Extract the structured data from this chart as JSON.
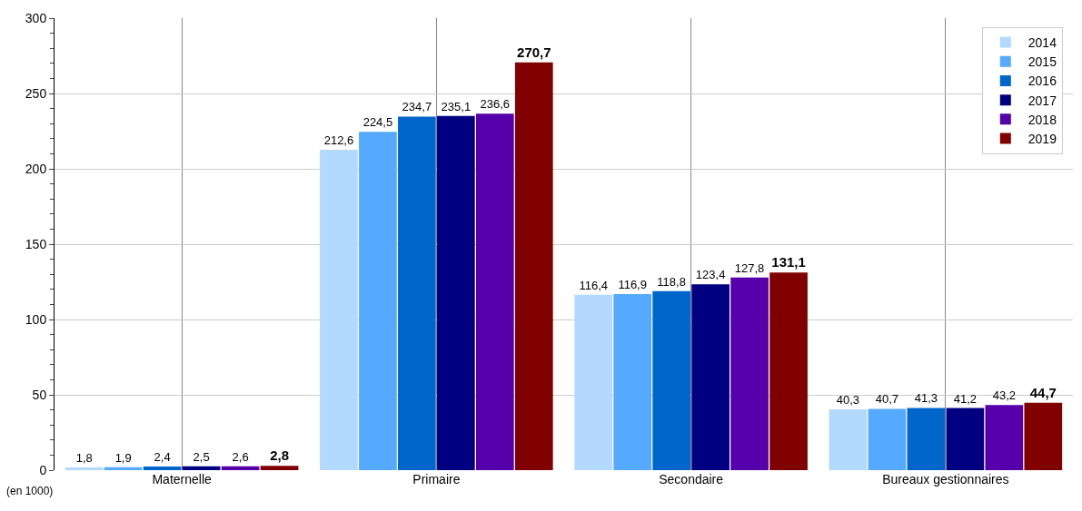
{
  "chart_data": {
    "type": "bar",
    "categories": [
      "Maternelle",
      "Primaire",
      "Secondaire",
      "Bureaux gestionnaires"
    ],
    "series": [
      {
        "name": "2014",
        "color": "#b3d9ff",
        "values": [
          1.8,
          212.6,
          116.4,
          40.3
        ],
        "value_labels": [
          "1,8",
          "212,6",
          "116,4",
          "40,3"
        ]
      },
      {
        "name": "2015",
        "color": "#55aaff",
        "values": [
          1.9,
          224.5,
          116.9,
          40.7
        ],
        "value_labels": [
          "1,9",
          "224,5",
          "116,9",
          "40,7"
        ]
      },
      {
        "name": "2016",
        "color": "#0066cc",
        "values": [
          2.4,
          234.7,
          118.8,
          41.3
        ],
        "value_labels": [
          "2,4",
          "234,7",
          "118,8",
          "41,3"
        ]
      },
      {
        "name": "2017",
        "color": "#000080",
        "values": [
          2.5,
          235.1,
          123.4,
          41.2
        ],
        "value_labels": [
          "2,5",
          "235,1",
          "123,4",
          "41,2"
        ]
      },
      {
        "name": "2018",
        "color": "#5500aa",
        "values": [
          2.6,
          236.6,
          127.8,
          43.2
        ],
        "value_labels": [
          "2,6",
          "236,6",
          "127,8",
          "43,2"
        ]
      },
      {
        "name": "2019",
        "color": "#800000",
        "values": [
          2.8,
          270.7,
          131.1,
          44.7
        ],
        "value_labels": [
          "2,8",
          "270,7",
          "131,1",
          "44,7"
        ]
      }
    ],
    "ylim": [
      0,
      300
    ],
    "yticks": [
      0,
      50,
      100,
      150,
      200,
      250,
      300
    ],
    "grid": true,
    "legend": "top right",
    "annotations": [
      "(en 1000)"
    ]
  }
}
